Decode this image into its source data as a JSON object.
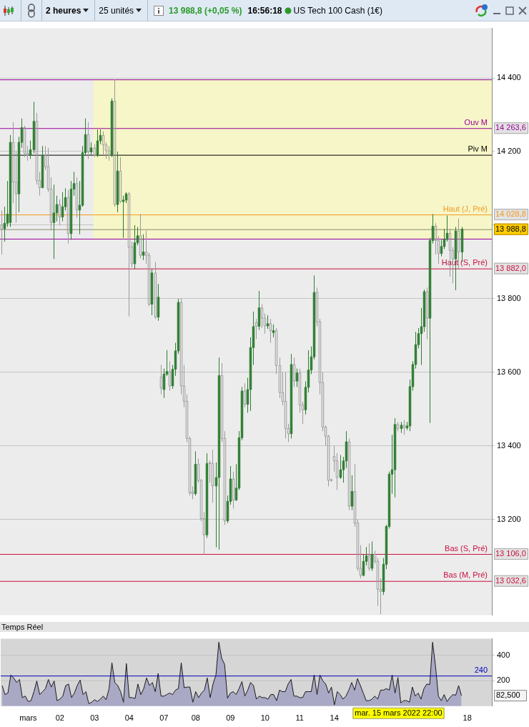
{
  "chart_data": [
    {
      "type": "candlestick",
      "title": "US Tech 100 Cash (1€)",
      "annotations": [
        "2 heures",
        "25 unités",
        "13 988,8 (+0,05 %)",
        "16:56:18",
        "14 263,6",
        "14 028,8",
        "13 988,8",
        "13 882,0",
        "13 106,0",
        "13 032,6"
      ],
      "categories": [
        null,
        null,
        null,
        null,
        null,
        null,
        null,
        null,
        null,
        "mars",
        null,
        null,
        null,
        null,
        null,
        null,
        null,
        null,
        null,
        null,
        "02",
        null,
        null,
        null,
        null,
        null,
        null,
        null,
        null,
        null,
        null,
        null,
        "03",
        null,
        null,
        null,
        null,
        null,
        null,
        null,
        null,
        null,
        null,
        null,
        "04",
        null,
        null,
        null,
        null,
        null,
        null,
        null,
        null,
        null,
        null,
        null,
        "07",
        null,
        null,
        null,
        null,
        null,
        null,
        null,
        null,
        null,
        null,
        "08",
        null,
        null,
        null,
        null,
        null,
        null,
        null,
        null,
        null,
        null,
        null,
        "09",
        null,
        null,
        null,
        null,
        null,
        null,
        null,
        null,
        null,
        null,
        null,
        "10",
        null,
        null,
        null,
        null,
        null,
        null,
        null,
        null,
        null,
        null,
        null,
        "11",
        null,
        null,
        null,
        null,
        null,
        null,
        null,
        null,
        null,
        null,
        null,
        "14",
        null,
        null,
        null,
        null,
        null,
        null,
        null,
        null,
        null,
        null,
        null,
        null,
        null,
        null,
        null,
        null,
        null,
        null,
        null,
        null,
        null,
        null,
        null,
        null,
        null,
        null,
        null,
        null,
        null,
        null,
        null,
        null,
        null,
        null,
        null,
        null,
        null,
        null,
        null,
        null,
        null,
        null,
        null,
        null,
        null,
        "18",
        null,
        null,
        null,
        null,
        null,
        null,
        null,
        null
      ],
      "ohlc": [
        [
          14000,
          14040,
          13920,
          13990
        ],
        [
          13990,
          14050,
          13955,
          14005
        ],
        [
          14005,
          14120,
          13995,
          14030
        ],
        [
          14007,
          14245,
          13995,
          14225
        ],
        [
          14225,
          14280,
          14060,
          14117
        ],
        [
          14117,
          14200,
          14007,
          14085
        ],
        [
          14085,
          14240,
          14035,
          14225
        ],
        [
          14225,
          14290,
          14210,
          14265
        ],
        [
          14265,
          14270,
          14185,
          14195
        ],
        [
          14195,
          14215,
          14175,
          14190
        ],
        [
          14190,
          14230,
          14180,
          14205
        ],
        [
          14205,
          14335,
          14195,
          14282
        ],
        [
          14282,
          14305,
          14110,
          14121
        ],
        [
          14121,
          14145,
          14080,
          14102
        ],
        [
          14102,
          14215,
          14100,
          14189
        ],
        [
          14189,
          14215,
          14150,
          14159
        ],
        [
          14159,
          14210,
          14090,
          14098
        ],
        [
          14098,
          14130,
          13985,
          14007
        ],
        [
          14007,
          14110,
          13908,
          14033
        ],
        [
          14033,
          14080,
          14010,
          14056
        ],
        [
          14056,
          14070,
          14000,
          14022
        ],
        [
          14022,
          14090,
          14010,
          14050
        ],
        [
          14050,
          14100,
          14040,
          14075
        ],
        [
          14075,
          14095,
          13950,
          13977
        ],
        [
          13977,
          14120,
          13960,
          14098
        ],
        [
          14098,
          14145,
          14080,
          14113
        ],
        [
          14113,
          14130,
          14020,
          14041
        ],
        [
          14041,
          14120,
          13975,
          14054
        ],
        [
          14054,
          14215,
          14050,
          14197
        ],
        [
          14197,
          14290,
          14190,
          14246
        ],
        [
          14246,
          14280,
          14180,
          14199
        ],
        [
          14199,
          14225,
          14190,
          14210
        ],
        [
          14210,
          14220,
          14185,
          14189
        ],
        [
          14189,
          14260,
          14185,
          14229
        ],
        [
          14229,
          14260,
          14220,
          14244
        ],
        [
          14244,
          14255,
          14190,
          14218
        ],
        [
          14218,
          14225,
          14180,
          14202
        ],
        [
          14202,
          14215,
          14175,
          14189
        ],
        [
          14189,
          14345,
          14185,
          14337
        ],
        [
          14337,
          14396,
          14050,
          14056
        ],
        [
          14056,
          14200,
          14035,
          14147
        ],
        [
          14147,
          14185,
          14060,
          14064
        ],
        [
          14064,
          14080,
          13965,
          14068
        ],
        [
          14068,
          14090,
          14060,
          14085
        ],
        [
          14085,
          14090,
          13752,
          13940
        ],
        [
          13940,
          13955,
          13885,
          13895
        ],
        [
          13895,
          14000,
          13880,
          13952
        ],
        [
          13952,
          13995,
          13945,
          13971
        ],
        [
          13971,
          14030,
          13910,
          13918
        ],
        [
          13918,
          13975,
          13905,
          13927
        ],
        [
          13927,
          13985,
          13895,
          13918
        ],
        [
          13918,
          13925,
          13780,
          13785
        ],
        [
          13785,
          13880,
          13755,
          13870
        ],
        [
          13870,
          13900,
          13745,
          13750
        ],
        [
          13750,
          13840,
          13740,
          13804
        ],
        [
          13587,
          13620,
          13540,
          13557
        ],
        [
          13553,
          13610,
          13530,
          13595
        ],
        [
          13595,
          13660,
          13590,
          13602
        ],
        [
          13602,
          13630,
          13550,
          13563
        ],
        [
          13563,
          13620,
          13555,
          13608
        ],
        [
          13608,
          13680,
          13590,
          13658
        ],
        [
          13658,
          13800,
          13650,
          13790
        ],
        [
          13790,
          13800,
          13540,
          13563
        ],
        [
          13563,
          13620,
          13505,
          13521
        ],
        [
          13521,
          13540,
          13410,
          13420
        ],
        [
          13420,
          13425,
          13265,
          13272
        ],
        [
          13275,
          13290,
          13255,
          13270
        ],
        [
          13270,
          13385,
          13265,
          13350
        ],
        [
          13350,
          13365,
          13300,
          13306
        ],
        [
          13306,
          13310,
          13195,
          13202
        ],
        [
          13202,
          13220,
          13105,
          13158
        ],
        [
          13158,
          13380,
          13150,
          13352
        ],
        [
          13354,
          13360,
          13300,
          13352
        ],
        [
          13352,
          13390,
          13245,
          13291
        ],
        [
          13291,
          13355,
          13124,
          13314
        ],
        [
          13314,
          13640,
          13118,
          13591
        ],
        [
          13591,
          13625,
          13410,
          13420
        ],
        [
          13420,
          13440,
          13185,
          13196
        ],
        [
          13196,
          13265,
          13190,
          13249
        ],
        [
          13249,
          13345,
          13240,
          13310
        ],
        [
          13310,
          13330,
          13230,
          13253
        ],
        [
          13253,
          13350,
          13250,
          13285
        ],
        [
          13285,
          13440,
          13280,
          13422
        ],
        [
          13422,
          13560,
          13415,
          13549
        ],
        [
          13549,
          13570,
          13505,
          13513
        ],
        [
          13513,
          13585,
          13490,
          13553
        ],
        [
          13553,
          13695,
          13495,
          13667
        ],
        [
          13667,
          13765,
          13620,
          13724
        ],
        [
          13735,
          13745,
          13690,
          13725
        ],
        [
          13725,
          13821,
          13715,
          13775
        ],
        [
          13775,
          13785,
          13720,
          13747
        ],
        [
          13747,
          13760,
          13705,
          13726
        ],
        [
          13726,
          13755,
          13718,
          13732
        ],
        [
          13732,
          13745,
          13680,
          13713
        ],
        [
          13708,
          13730,
          13695,
          13713
        ],
        [
          13713,
          13720,
          13595,
          13618
        ],
        [
          13618,
          13640,
          13530,
          13545
        ],
        [
          13545,
          13600,
          13510,
          13521
        ],
        [
          13521,
          13600,
          13420,
          13447
        ],
        [
          13447,
          13460,
          13410,
          13433
        ],
        [
          13433,
          13650,
          13420,
          13621
        ],
        [
          13621,
          13640,
          13560,
          13576
        ],
        [
          13576,
          13610,
          13560,
          13598
        ],
        [
          13598,
          13610,
          13490,
          13511
        ],
        [
          13511,
          13520,
          13460,
          13498
        ],
        [
          13498,
          13575,
          13485,
          13559
        ],
        [
          13559,
          13660,
          13545,
          13606
        ],
        [
          13606,
          13670,
          13595,
          13642
        ],
        [
          13642,
          13863,
          13635,
          13817
        ],
        [
          13817,
          13830,
          13725,
          13737
        ],
        [
          13737,
          13745,
          13540,
          13572
        ],
        [
          13572,
          13600,
          13440,
          13451
        ],
        [
          13451,
          13455,
          13400,
          13426
        ],
        [
          13426,
          13430,
          13290,
          13306
        ],
        [
          13308,
          13310,
          13302,
          13306
        ],
        [
          13371,
          13400,
          13330,
          13359
        ],
        [
          13359,
          13380,
          13280,
          13314
        ],
        [
          13314,
          13375,
          13310,
          13335
        ],
        [
          13335,
          13370,
          13300,
          13359
        ],
        [
          13359,
          13440,
          13340,
          13411
        ],
        [
          13411,
          13420,
          13225,
          13236
        ],
        [
          13236,
          13320,
          13225,
          13276
        ],
        [
          13276,
          13350,
          13180,
          13190
        ],
        [
          13190,
          13200,
          13060,
          13067
        ],
        [
          13067,
          13130,
          13040,
          13048
        ],
        [
          13048,
          13105,
          13045,
          13086
        ],
        [
          13086,
          13125,
          13075,
          13101
        ],
        [
          13101,
          13135,
          13060,
          13067
        ],
        [
          13067,
          13140,
          13060,
          13105
        ],
        [
          13105,
          13115,
          13080,
          13086
        ],
        [
          13086,
          13095,
          12965,
          13010
        ],
        [
          13010,
          13040,
          12942,
          13004
        ],
        [
          13004,
          13095,
          12995,
          13078
        ],
        [
          13078,
          13185,
          13065,
          13181
        ],
        [
          13181,
          13330,
          13175,
          13323
        ],
        [
          13323,
          13430,
          13270,
          13335
        ],
        [
          13335,
          13475,
          13260,
          13458
        ],
        [
          13458,
          13465,
          13440,
          13447
        ],
        [
          13447,
          13465,
          13435,
          13456
        ],
        [
          13456,
          13470,
          13430,
          13449
        ],
        [
          13449,
          13465,
          13443,
          13454
        ],
        [
          13454,
          13580,
          13440,
          13561
        ],
        [
          13561,
          13630,
          13550,
          13621
        ],
        [
          13621,
          13710,
          13610,
          13675
        ],
        [
          13675,
          13720,
          13665,
          13705
        ],
        [
          13705,
          13775,
          13620,
          13724
        ],
        [
          13724,
          13825,
          13710,
          13819
        ],
        [
          13819,
          13830,
          13690,
          13747
        ],
        [
          13747,
          13965,
          13462,
          13958
        ],
        [
          13958,
          14030,
          13950,
          13997
        ],
        [
          13997,
          14005,
          13920,
          13958
        ],
        [
          13958,
          13970,
          13895,
          13923
        ],
        [
          13923,
          13960,
          13915,
          13942
        ],
        [
          13942,
          13990,
          13935,
          13961
        ],
        [
          13961,
          14026,
          13955,
          13978
        ],
        [
          13978,
          13990,
          13860,
          13931
        ],
        [
          13931,
          13940,
          13842,
          13908
        ],
        [
          13908,
          13995,
          13823,
          13984
        ],
        [
          13984,
          14018,
          13880,
          13927
        ],
        [
          13927,
          13995,
          13900,
          13988.8
        ],
        null,
        null,
        null,
        null,
        null,
        null,
        null,
        null,
        null,
        null
      ],
      "colors": [
        "#9a9a9a",
        "#2e7d32",
        "#2e7d32",
        "#2e7d32",
        "#9a9a9a",
        "#9a9a9a",
        "#2e7d32",
        "#2e7d32",
        "#9a9a9a",
        "#9a9a9a",
        "#2e7d32",
        "#2e7d32",
        "#9a9a9a",
        "#9a9a9a",
        "#2e7d32",
        "#9a9a9a",
        "#9a9a9a",
        "#9a9a9a",
        "#2e7d32",
        "#2e7d32",
        "#9a9a9a",
        "#2e7d32",
        "#2e7d32",
        "#9a9a9a",
        "#2e7d32",
        "#2e7d32",
        "#9a9a9a",
        "#2e7d32",
        "#2e7d32",
        "#2e7d32",
        "#9a9a9a",
        "#2e7d32",
        "#9a9a9a",
        "#2e7d32",
        "#2e7d32",
        "#9a9a9a",
        "#9a9a9a",
        "#9a9a9a",
        "#2e7d32",
        "#9a9a9a",
        "#2e7d32",
        "#9a9a9a",
        "#2e7d32",
        "#2e7d32",
        "#9a9a9a",
        "#9a9a9a",
        "#2e7d32",
        "#2e7d32",
        "#9a9a9a",
        "#2e7d32",
        "#9a9a9a",
        "#9a9a9a",
        "#2e7d32",
        "#9a9a9a",
        "#2e7d32",
        "#9a9a9a",
        "#2e7d32",
        "#2e7d32",
        "#9a9a9a",
        "#2e7d32",
        "#2e7d32",
        "#2e7d32",
        "#9a9a9a",
        "#9a9a9a",
        "#9a9a9a",
        "#9a9a9a",
        "#9a9a9a",
        "#2e7d32",
        "#9a9a9a",
        "#9a9a9a",
        "#9a9a9a",
        "#2e7d32",
        "#9a9a9a",
        "#9a9a9a",
        "#2e7d32",
        "#2e7d32",
        "#9a9a9a",
        "#9a9a9a",
        "#2e7d32",
        "#2e7d32",
        "#9a9a9a",
        "#2e7d32",
        "#2e7d32",
        "#2e7d32",
        "#9a9a9a",
        "#2e7d32",
        "#2e7d32",
        "#2e7d32",
        "#9a9a9a",
        "#2e7d32",
        "#9a9a9a",
        "#9a9a9a",
        "#2e7d32",
        "#9a9a9a",
        "#2e7d32",
        "#9a9a9a",
        "#9a9a9a",
        "#9a9a9a",
        "#9a9a9a",
        "#9a9a9a",
        "#2e7d32",
        "#9a9a9a",
        "#2e7d32",
        "#9a9a9a",
        "#9a9a9a",
        "#2e7d32",
        "#2e7d32",
        "#2e7d32",
        "#2e7d32",
        "#9a9a9a",
        "#9a9a9a",
        "#9a9a9a",
        "#9a9a9a",
        "#9a9a9a",
        "#9a9a9a",
        "#9a9a9a",
        "#9a9a9a",
        "#2e7d32",
        "#2e7d32",
        "#2e7d32",
        "#9a9a9a",
        "#2e7d32",
        "#9a9a9a",
        "#9a9a9a",
        "#9a9a9a",
        "#2e7d32",
        "#2e7d32",
        "#9a9a9a",
        "#2e7d32",
        "#9a9a9a",
        "#9a9a9a",
        "#9a9a9a",
        "#2e7d32",
        "#2e7d32",
        "#2e7d32",
        "#2e7d32",
        "#2e7d32",
        "#9a9a9a",
        "#2e7d32",
        "#9a9a9a",
        "#2e7d32",
        "#2e7d32",
        "#2e7d32",
        "#2e7d32",
        "#2e7d32",
        "#2e7d32",
        "#2e7d32",
        "#9a9a9a",
        "#2e7d32",
        "#2e7d32",
        "#9a9a9a",
        "#9a9a9a",
        "#2e7d32",
        "#2e7d32",
        "#2e7d32",
        "#9a9a9a",
        "#9a9a9a",
        "#2e7d32",
        "#9a9a9a",
        "#2e7d32",
        null,
        null,
        null,
        null,
        null,
        null,
        null,
        null,
        null,
        null
      ],
      "ylim": [
        12940,
        14535
      ],
      "yticks": [
        14400,
        14200,
        {
          "value": 14000,
          "label": null
        },
        13800,
        13600,
        13400,
        13200
      ],
      "grid": "y",
      "tick_labels": "y",
      "bands": [
        {
          "axis": "y",
          "from": 13963,
          "to": 14396,
          "color": "#f6f6c8"
        }
      ],
      "ref_lines": [
        {
          "axis": "y",
          "value": 14396,
          "label": null,
          "color": "#990099"
        },
        {
          "axis": "y",
          "value": 13963,
          "label": null,
          "color": "#990099"
        },
        {
          "axis": "y",
          "value": 14263.6,
          "label": "Ouv M",
          "color": "#990099"
        },
        {
          "axis": "y",
          "value": 14191,
          "label": "Piv M",
          "color": "#000000"
        },
        {
          "axis": "y",
          "value": 14028.8,
          "label": "Haut (J, Pré)",
          "color": "#f39a1e"
        },
        {
          "axis": "y",
          "value": 13988.8,
          "label": null,
          "color": "#8a8a70"
        },
        {
          "axis": "y",
          "value": 13882.0,
          "label": "Haut (S, Pré)",
          "color": "#c8103e"
        },
        {
          "axis": "y",
          "value": 13106.0,
          "label": "Bas (S, Pré)",
          "color": "#c8103e"
        },
        {
          "axis": "y",
          "value": 13032.6,
          "label": "Bas (M, Pré)",
          "color": "#c8103e"
        }
      ]
    },
    {
      "type": "area",
      "title": "Temps Réel",
      "annotations": [
        "mar. 15 mars 2022 22:00",
        "82,500"
      ],
      "categories": [
        null,
        null,
        null,
        null,
        null,
        null,
        null,
        null,
        null,
        "mars",
        null,
        null,
        null,
        null,
        null,
        null,
        null,
        null,
        null,
        null,
        "02",
        null,
        null,
        null,
        null,
        null,
        null,
        null,
        null,
        null,
        null,
        null,
        "03",
        null,
        null,
        null,
        null,
        null,
        null,
        null,
        null,
        null,
        null,
        null,
        "04",
        null,
        null,
        null,
        null,
        null,
        null,
        null,
        null,
        null,
        null,
        null,
        "07",
        null,
        null,
        null,
        null,
        null,
        null,
        null,
        null,
        null,
        null,
        "08",
        null,
        null,
        null,
        null,
        null,
        null,
        null,
        null,
        null,
        null,
        null,
        "09",
        null,
        null,
        null,
        null,
        null,
        null,
        null,
        null,
        null,
        null,
        null,
        "10",
        null,
        null,
        null,
        null,
        null,
        null,
        null,
        null,
        null,
        null,
        null,
        "11",
        null,
        null,
        null,
        null,
        null,
        null,
        null,
        null,
        null,
        null,
        null,
        "14",
        null,
        null,
        null,
        null,
        null,
        null,
        null,
        null,
        null,
        null,
        null,
        null,
        null,
        null,
        null,
        null,
        null,
        null,
        null,
        null,
        null,
        null,
        null,
        null,
        null,
        null,
        null,
        null,
        null,
        null,
        null,
        null,
        null,
        null,
        null,
        null,
        null,
        null,
        null,
        null,
        null,
        null,
        null,
        null,
        null,
        "18",
        null,
        null,
        null,
        null,
        null,
        null,
        null,
        null
      ],
      "values": [
        162,
        91,
        103,
        245,
        222,
        186,
        210,
        67,
        79,
        36,
        43,
        114,
        198,
        91,
        114,
        138,
        210,
        150,
        198,
        43,
        55,
        79,
        162,
        174,
        67,
        103,
        162,
        205,
        91,
        114,
        19,
        31,
        50,
        36,
        55,
        79,
        50,
        138,
        341,
        186,
        162,
        114,
        31,
        336,
        67,
        67,
        60,
        174,
        91,
        138,
        222,
        162,
        186,
        114,
        257,
        79,
        79,
        91,
        103,
        91,
        126,
        138,
        341,
        145,
        150,
        150,
        31,
        114,
        67,
        103,
        126,
        222,
        67,
        174,
        245,
        503,
        376,
        329,
        62,
        103,
        114,
        91,
        138,
        193,
        79,
        126,
        186,
        162,
        55,
        79,
        67,
        67,
        55,
        91,
        91,
        43,
        126,
        114,
        114,
        174,
        210,
        79,
        79,
        67,
        67,
        114,
        114,
        114,
        245,
        91,
        245,
        198,
        174,
        103,
        150,
        10,
        114,
        91,
        55,
        79,
        126,
        186,
        126,
        217,
        162,
        103,
        43,
        43,
        55,
        79,
        55,
        126,
        126,
        138,
        126,
        245,
        103,
        226,
        26,
        43,
        43,
        31,
        150,
        79,
        103,
        55,
        138,
        174,
        169,
        503,
        317,
        79,
        43,
        91,
        36,
        67,
        91,
        86,
        162,
        82.5,
        null,
        null,
        null,
        null,
        null,
        null,
        null,
        null,
        null,
        null
      ],
      "color": "#a9a9c6",
      "ylim": [
        0,
        530
      ],
      "yticks": [
        200,
        400
      ],
      "grid": "y",
      "ref_lines": [
        {
          "axis": "y",
          "value": 240,
          "label": "240",
          "color": "#0000c0"
        }
      ]
    }
  ]
}
